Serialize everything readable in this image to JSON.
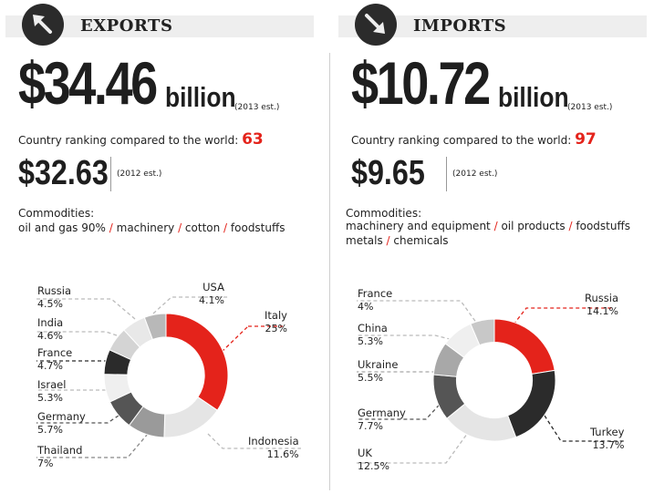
{
  "exports": {
    "title": "EXPORTS",
    "value": "$34.46",
    "unit": "billion",
    "est_label": "(2013 est.)",
    "ranking_label": "Country ranking compared to the world:",
    "ranking": "63",
    "prev_value": "$32.63",
    "prev_est_label": "(2012 est.)",
    "commodities_label": "Commodities:",
    "commodities_lines": [
      [
        "oil and gas 90%",
        "machinery",
        "cotton",
        "foodstuffs"
      ]
    ]
  },
  "imports": {
    "title": "IMPORTS",
    "value": "$10.72",
    "unit": "billion",
    "est_label": "(2013 est.)",
    "ranking_label": "Country ranking compared to the world:",
    "ranking": "97",
    "prev_value": "$9.65",
    "prev_est_label": "(2012 est.)",
    "commodities_label": "Commodities:",
    "commodities_lines": [
      [
        "machinery and equipment",
        "oil products",
        "foodstuffs"
      ],
      [
        "metals",
        "chemicals"
      ]
    ]
  },
  "colors": {
    "accent": "#e4231b",
    "dark": "#2b2b2b",
    "header_bar": "#eeeeee"
  },
  "icons": {
    "exports": "arrow-up-left-icon",
    "imports": "arrow-down-right-icon"
  },
  "chart_data": [
    {
      "type": "pie",
      "donut": true,
      "categories": [
        "Italy",
        "Indonesia",
        "Thailand",
        "Germany",
        "Israel",
        "France",
        "India",
        "Russia",
        "USA"
      ],
      "values": [
        25,
        11.6,
        7,
        5.7,
        5.3,
        4.7,
        4.6,
        4.5,
        4.1
      ],
      "value_labels": [
        "25%",
        "11.6%",
        "7%",
        "5.7%",
        "5.3%",
        "4.7%",
        "4.6%",
        "4.5%",
        "4.1%"
      ],
      "colors": [
        "#e4231b",
        "#e5e5e5",
        "#9a9a9a",
        "#555555",
        "#efefef",
        "#2b2b2b",
        "#d4d4d4",
        "#e8e8e8",
        "#b8b8b8"
      ]
    },
    {
      "type": "pie",
      "donut": true,
      "categories": [
        "Russia",
        "Turkey",
        "UK",
        "Germany",
        "Ukraine",
        "China",
        "France"
      ],
      "values": [
        14.1,
        13.7,
        12.5,
        7.7,
        5.5,
        5.3,
        4
      ],
      "value_labels": [
        "14.1%",
        "13.7%",
        "12.5%",
        "7.7%",
        "5.5%",
        "5.3%",
        "4%"
      ],
      "colors": [
        "#e4231b",
        "#2b2b2b",
        "#e5e5e5",
        "#555555",
        "#a8a8a8",
        "#efefef",
        "#c8c8c8"
      ]
    }
  ]
}
